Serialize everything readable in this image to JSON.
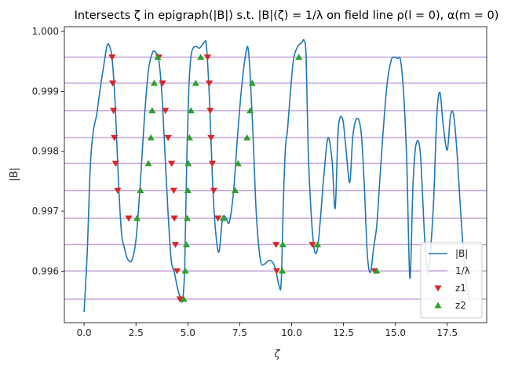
{
  "chart_data": {
    "type": "line",
    "title": "Intersects ζ in epigraph(|B|) s.t. |B|(ζ) = 1/λ on field line ρ(l = 0), α(m = 0)",
    "xlabel": "ζ",
    "ylabel": "|B|",
    "xlim": [
      -0.95,
      19.4
    ],
    "ylim": [
      0.99514,
      1.00008
    ],
    "xticks": [
      0.0,
      2.5,
      5.0,
      7.5,
      10.0,
      12.5,
      15.0,
      17.5
    ],
    "xtick_labels": [
      "0.0",
      "2.5",
      "5.0",
      "7.5",
      "10.0",
      "12.5",
      "15.0",
      "17.5"
    ],
    "yticks": [
      0.996,
      0.997,
      0.998,
      0.999,
      1.0
    ],
    "ytick_labels": [
      "0.996",
      "0.997",
      "0.998",
      "0.999",
      "1.000"
    ],
    "grid": false,
    "legend": {
      "location": "lower-right",
      "entries": [
        {
          "label": "|B|",
          "color": "#1f77b4",
          "kind": "line"
        },
        {
          "label": "1/λ",
          "color": "#c5a6d9",
          "kind": "line"
        },
        {
          "label": "z1",
          "color": "#d62728",
          "kind": "triangle-down"
        },
        {
          "label": "z2",
          "color": "#2ca02c",
          "kind": "triangle-up"
        }
      ]
    },
    "series": [
      {
        "name": "|B|",
        "color": "#1f77b4",
        "x": [
          0.0,
          0.15,
          0.3,
          0.45,
          0.6,
          0.8,
          1.0,
          1.1,
          1.2,
          1.35,
          1.5,
          1.65,
          1.8,
          1.95,
          2.1,
          2.3,
          2.5,
          2.7,
          2.9,
          3.1,
          3.3,
          3.45,
          3.6,
          3.75,
          3.9,
          4.05,
          4.2,
          4.35,
          4.5,
          4.65,
          4.75,
          4.85,
          4.95,
          5.05,
          5.15,
          5.25,
          5.4,
          5.55,
          5.7,
          5.8,
          5.9,
          6.05,
          6.2,
          6.35,
          6.5,
          6.65,
          6.75,
          6.85,
          7.0,
          7.2,
          7.4,
          7.6,
          7.8,
          7.9,
          8.0,
          8.15,
          8.3,
          8.5,
          8.7,
          8.9,
          9.1,
          9.25,
          9.4,
          9.5,
          9.6,
          9.7,
          9.8,
          9.95,
          10.1,
          10.3,
          10.5,
          10.6,
          10.7,
          10.8,
          10.95,
          11.1,
          11.25,
          11.4,
          11.55,
          11.75,
          11.95,
          12.1,
          12.25,
          12.45,
          12.6,
          12.8,
          12.95,
          13.15,
          13.35,
          13.5,
          13.65,
          13.8,
          13.95,
          14.1,
          14.25,
          14.4,
          14.6,
          14.8,
          14.95,
          15.1,
          15.25,
          15.4,
          15.55,
          15.7,
          15.85,
          16.0,
          16.2,
          16.4,
          16.55,
          16.7,
          16.85,
          17.0,
          17.15,
          17.3,
          17.5,
          17.65,
          17.8,
          17.95,
          18.1,
          18.25,
          18.4,
          18.6
        ],
        "values": [
          0.99532,
          0.9963,
          0.99775,
          0.99835,
          0.9986,
          0.9991,
          0.99955,
          0.99975,
          0.99978,
          0.99955,
          0.99878,
          0.99755,
          0.99665,
          0.99638,
          0.9962,
          0.99618,
          0.99652,
          0.99742,
          0.99852,
          0.99935,
          0.99965,
          0.99965,
          0.99952,
          0.99895,
          0.99795,
          0.99695,
          0.99618,
          0.99598,
          0.99572,
          0.99555,
          0.99552,
          0.99608,
          0.9979,
          0.99908,
          0.99958,
          0.99972,
          0.99975,
          0.99972,
          0.99978,
          0.99982,
          0.99975,
          0.9988,
          0.99742,
          0.99662,
          0.99632,
          0.99682,
          0.99692,
          0.99688,
          0.99682,
          0.99732,
          0.99828,
          0.9991,
          0.99965,
          0.99972,
          0.9993,
          0.9982,
          0.99695,
          0.99618,
          0.99612,
          0.99618,
          0.99614,
          0.996,
          0.99575,
          0.99582,
          0.99712,
          0.99805,
          0.99835,
          0.99902,
          0.99955,
          0.99975,
          0.99982,
          0.99985,
          0.99958,
          0.99802,
          0.99692,
          0.99635,
          0.99638,
          0.99692,
          0.99758,
          0.99822,
          0.99785,
          0.99705,
          0.99838,
          0.99855,
          0.99812,
          0.99748,
          0.99825,
          0.99855,
          0.99832,
          0.99745,
          0.99628,
          0.99598,
          0.99638,
          0.99675,
          0.99752,
          0.99828,
          0.99912,
          0.99952,
          0.99957,
          0.99955,
          0.99952,
          0.99895,
          0.99782,
          0.99588,
          0.99745,
          0.99812,
          0.99798,
          0.99662,
          0.99598,
          0.99638,
          0.99722,
          0.99862,
          0.99898,
          0.99845,
          0.99802,
          0.99858,
          0.99862,
          0.99808,
          0.99725,
          0.99645,
          0.99585,
          0.99548
        ]
      },
      {
        "name": "1/λ",
        "color": "#c5a6d9",
        "levels": [
          0.995533,
          0.996004,
          0.996443,
          0.996883,
          0.997347,
          0.997797,
          0.998228,
          0.99868,
          0.999138,
          0.999571
        ]
      },
      {
        "name": "z1",
        "color": "#d62728",
        "marker": "triangle-down",
        "points": [
          [
            1.35,
            0.999571
          ],
          [
            1.38,
            0.999138
          ],
          [
            1.42,
            0.99868
          ],
          [
            1.46,
            0.998228
          ],
          [
            1.52,
            0.997797
          ],
          [
            1.62,
            0.997347
          ],
          [
            2.15,
            0.996883
          ],
          [
            3.6,
            0.999571
          ],
          [
            3.78,
            0.999138
          ],
          [
            3.92,
            0.99868
          ],
          [
            4.05,
            0.998228
          ],
          [
            4.22,
            0.997797
          ],
          [
            4.32,
            0.997347
          ],
          [
            4.35,
            0.996883
          ],
          [
            4.4,
            0.996443
          ],
          [
            4.48,
            0.996004
          ],
          [
            4.62,
            0.995533
          ],
          [
            5.95,
            0.999571
          ],
          [
            6.03,
            0.999138
          ],
          [
            6.08,
            0.99868
          ],
          [
            6.12,
            0.998228
          ],
          [
            6.18,
            0.997797
          ],
          [
            6.25,
            0.997347
          ],
          [
            6.45,
            0.996883
          ],
          [
            9.25,
            0.996443
          ],
          [
            9.28,
            0.996004
          ],
          [
            11.0,
            0.996443
          ],
          [
            14.0,
            0.996004
          ]
        ]
      },
      {
        "name": "z2",
        "color": "#2ca02c",
        "marker": "triangle-up",
        "points": [
          [
            2.55,
            0.996883
          ],
          [
            2.72,
            0.997347
          ],
          [
            3.1,
            0.997797
          ],
          [
            3.22,
            0.998228
          ],
          [
            3.28,
            0.99868
          ],
          [
            3.38,
            0.999138
          ],
          [
            3.55,
            0.999571
          ],
          [
            4.8,
            0.995533
          ],
          [
            4.88,
            0.996004
          ],
          [
            4.93,
            0.996443
          ],
          [
            4.97,
            0.996883
          ],
          [
            5.0,
            0.997347
          ],
          [
            5.02,
            0.997797
          ],
          [
            5.08,
            0.998228
          ],
          [
            5.15,
            0.99868
          ],
          [
            5.38,
            0.999138
          ],
          [
            5.62,
            0.999571
          ],
          [
            6.7,
            0.996883
          ],
          [
            7.28,
            0.997347
          ],
          [
            7.42,
            0.997797
          ],
          [
            7.85,
            0.998228
          ],
          [
            8.0,
            0.99868
          ],
          [
            8.1,
            0.999138
          ],
          [
            9.55,
            0.996004
          ],
          [
            9.58,
            0.996443
          ],
          [
            10.35,
            0.999571
          ],
          [
            11.25,
            0.996443
          ],
          [
            14.1,
            0.996004
          ]
        ]
      }
    ]
  }
}
